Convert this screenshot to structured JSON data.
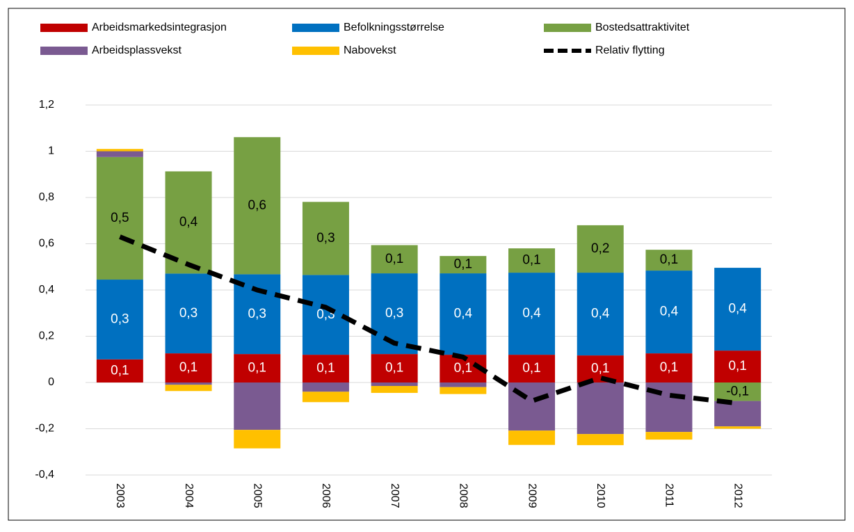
{
  "chart_data": {
    "type": "bar",
    "categories": [
      "2003",
      "2004",
      "2005",
      "2006",
      "2007",
      "2008",
      "2009",
      "2010",
      "2011",
      "2012"
    ],
    "series": [
      {
        "name": "Arbeidsmarkedsintegrasjon",
        "color": "#c00000",
        "values": [
          0.1,
          0.126,
          0.123,
          0.12,
          0.123,
          0.12,
          0.12,
          0.117,
          0.126,
          0.138
        ],
        "value_labels": [
          "0,1",
          "0,1",
          "0,1",
          "0,1",
          "0,1",
          "0,1",
          "0,1",
          "0,1",
          "0,1",
          "0,1"
        ]
      },
      {
        "name": "Befolkningsstørrelse",
        "color": "#0070c0",
        "values": [
          0.345,
          0.345,
          0.345,
          0.345,
          0.349,
          0.352,
          0.355,
          0.358,
          0.358,
          0.358
        ],
        "value_labels": [
          "0,3",
          "0,3",
          "0,3",
          "0,3",
          "0,3",
          "0,4",
          "0,4",
          "0,4",
          "0,4",
          "0,4"
        ]
      },
      {
        "name": "Bostedsattraktivitet",
        "color": "#77a043",
        "values": [
          0.53,
          0.442,
          0.593,
          0.316,
          0.122,
          0.075,
          0.105,
          0.205,
          0.09,
          -0.08
        ],
        "value_labels": [
          "0,5",
          "0,4",
          "0,6",
          "0,3",
          "0,1",
          "0,1",
          "0,1",
          "0,2",
          "0,1",
          "-0,1"
        ]
      },
      {
        "name": "Arbeidsplassvekst",
        "color": "#7a5a91",
        "values": [
          0.025,
          -0.01,
          -0.205,
          -0.04,
          -0.015,
          -0.02,
          -0.208,
          -0.223,
          -0.214,
          -0.11
        ]
      },
      {
        "name": "Nabovekst",
        "color": "#ffc000",
        "values": [
          0.01,
          -0.027,
          -0.08,
          -0.045,
          -0.03,
          -0.03,
          -0.062,
          -0.048,
          -0.033,
          -0.01
        ]
      },
      {
        "name": "Relativ flytting",
        "type": "line",
        "color": "#000000",
        "dashed": true,
        "values": [
          0.63,
          0.51,
          0.4,
          0.325,
          0.17,
          0.11,
          -0.08,
          0.02,
          -0.055,
          -0.09
        ]
      }
    ],
    "ylim": [
      -0.4,
      1.2
    ],
    "yticks": [
      {
        "value": -0.4,
        "label": "-0,4"
      },
      {
        "value": -0.2,
        "label": "-0,2"
      },
      0,
      {
        "value": 0.2,
        "label": "0,2"
      },
      {
        "value": 0.4,
        "label": "0,4"
      },
      {
        "value": 0.6,
        "label": "0,6"
      },
      {
        "value": 0.8,
        "label": "0,8"
      },
      1,
      {
        "value": 1.2,
        "label": "1,2"
      }
    ],
    "grid": true,
    "legend": "top"
  }
}
